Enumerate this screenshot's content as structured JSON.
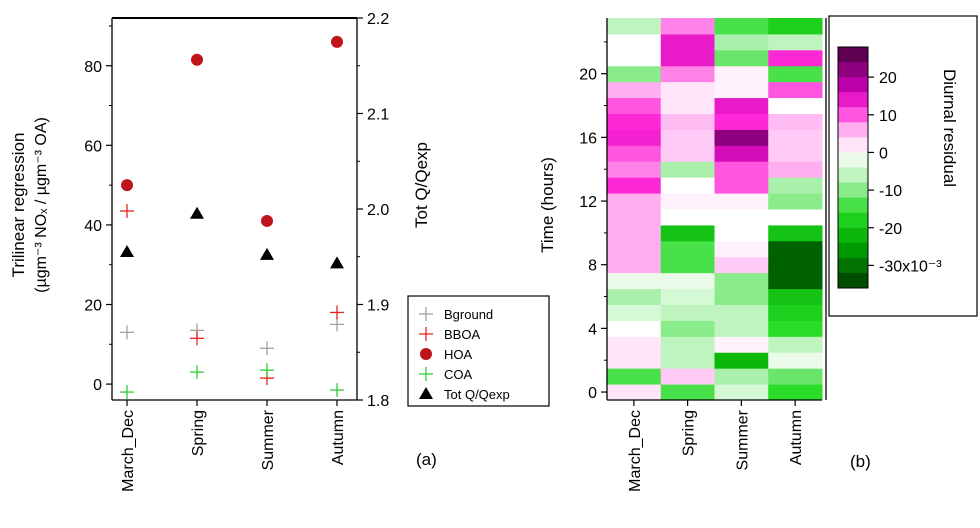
{
  "chart_data": [
    {
      "panel_label": "(a)",
      "type": "scatter",
      "categories": [
        "March_Dec",
        "Spring",
        "Summer",
        "Autumn"
      ],
      "ylabel_left": [
        "Trilinear regression",
        "(µgm⁻³ NOₓ / µgm⁻³ OA)"
      ],
      "ylabel_right": "Tot Q/Qexp",
      "ylim_left": [
        -4,
        92
      ],
      "ylim_right": [
        1.8,
        2.2
      ],
      "yticks_left": [
        "0",
        "20",
        "40",
        "60",
        "80"
      ],
      "yticks_right": [
        "1.8",
        "1.9",
        "2.0",
        "2.1",
        "2.2"
      ],
      "series": [
        {
          "name": "Bground",
          "axis": "left",
          "marker": "plus",
          "color": "#a0a0a0",
          "values": [
            13,
            13.5,
            9,
            15
          ]
        },
        {
          "name": "BBOA",
          "axis": "left",
          "marker": "plus",
          "color": "#e8231b",
          "values": [
            43.5,
            11.5,
            1.5,
            18
          ]
        },
        {
          "name": "HOA",
          "axis": "left",
          "marker": "circle",
          "color": "#c0141c",
          "values": [
            50,
            81.5,
            41,
            86
          ]
        },
        {
          "name": "COA",
          "axis": "left",
          "marker": "plus",
          "color": "#33cc33",
          "values": [
            -2,
            3,
            3.5,
            -1.5
          ]
        },
        {
          "name": "Tot Q/Qexp",
          "axis": "right",
          "marker": "triangle",
          "color": "#000000",
          "values": [
            1.955,
            1.995,
            1.952,
            1.943
          ]
        }
      ]
    },
    {
      "panel_label": "(b)",
      "type": "heatmap",
      "categories": [
        "March_Dec",
        "Spring",
        "Summer",
        "Autumn"
      ],
      "ylabel": "Time (hours)",
      "ylim": [
        -0.5,
        23.5
      ],
      "yticks": [
        "0",
        "4",
        "8",
        "12",
        "16",
        "20"
      ],
      "hours": [
        0,
        1,
        2,
        3,
        4,
        5,
        6,
        7,
        8,
        9,
        10,
        11,
        12,
        13,
        14,
        15,
        16,
        17,
        18,
        19,
        20,
        21,
        22,
        23
      ],
      "z_units": "x10^-3",
      "colorbar_label": "Diurnal residual",
      "colorbar_ticks": [
        "20",
        "10",
        "0",
        "-10",
        "-20",
        "-30x10⁻³"
      ],
      "colorbar_tick_values": [
        20,
        10,
        0,
        -10,
        -20,
        -30
      ],
      "colorbar_range": [
        -36,
        28
      ],
      "z": [
        [
          2,
          -14,
          -4,
          -16
        ],
        [
          -14,
          4,
          -8,
          -12
        ],
        [
          2,
          -6,
          -22,
          -2
        ],
        [
          2,
          -6,
          1,
          -6
        ],
        [
          0,
          -10,
          -6,
          -16
        ],
        [
          -4,
          -6,
          -6,
          -18
        ],
        [
          -8,
          -4,
          -10,
          -20
        ],
        [
          -2,
          -2,
          -10,
          -32
        ],
        [
          6,
          -14,
          4,
          -32
        ],
        [
          6,
          -14,
          1,
          -32
        ],
        [
          6,
          -20,
          0,
          -20
        ],
        [
          6,
          0,
          0,
          0
        ],
        [
          6,
          1,
          1,
          -10
        ],
        [
          12,
          0,
          10,
          -8
        ],
        [
          8,
          -8,
          10,
          6
        ],
        [
          10,
          4,
          16,
          4
        ],
        [
          13,
          4,
          22,
          4
        ],
        [
          12,
          5,
          12,
          5
        ],
        [
          10,
          2,
          14,
          0
        ],
        [
          6,
          2,
          1,
          10
        ],
        [
          -10,
          8,
          1,
          -14
        ],
        [
          0,
          14,
          -12,
          12
        ],
        [
          0,
          14,
          -8,
          -6
        ],
        [
          -6,
          8,
          -14,
          -18
        ]
      ]
    }
  ]
}
